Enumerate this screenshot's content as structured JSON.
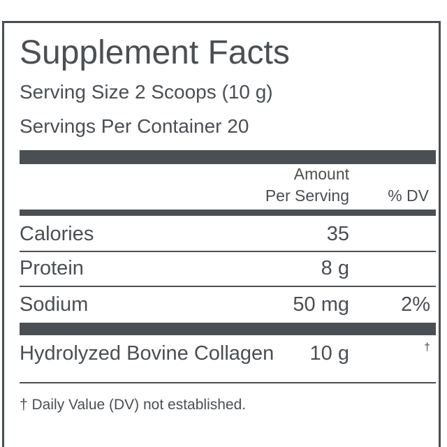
{
  "header": {
    "title": "Supplement Facts",
    "serving_size": "Serving Size 2 Scoops (10 g)",
    "servings_per_container": "Servings Per Container 20"
  },
  "table": {
    "header": {
      "amount": [
        "Amount",
        "Per Serving"
      ],
      "dv": "% DV"
    },
    "rows": [
      {
        "name": "Calories",
        "amount": "35"
      },
      {
        "name": "Protein",
        "amount": "8 g"
      },
      {
        "name": "Sodium",
        "amount": "50 mg",
        "dv": "2%"
      },
      {
        "name": "Hydrolyzed Bovine Collagen",
        "amount": "10 g",
        "dv": "†"
      }
    ]
  },
  "footnote": "† Daily Value (DV) not established."
}
